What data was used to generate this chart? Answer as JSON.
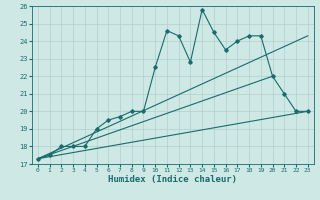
{
  "xlabel": "Humidex (Indice chaleur)",
  "xlim": [
    -0.5,
    23.5
  ],
  "ylim": [
    17,
    26
  ],
  "yticks": [
    17,
    18,
    19,
    20,
    21,
    22,
    23,
    24,
    25,
    26
  ],
  "xticks": [
    0,
    1,
    2,
    3,
    4,
    5,
    6,
    7,
    8,
    9,
    10,
    11,
    12,
    13,
    14,
    15,
    16,
    17,
    18,
    19,
    20,
    21,
    22,
    23
  ],
  "bg_color": "#cde8e5",
  "grid_color": "#b0d0cc",
  "line_color": "#1a6b6b",
  "line1_x": [
    0,
    1,
    2,
    3,
    4,
    5,
    6,
    7,
    8,
    9,
    10,
    11,
    12,
    13,
    14,
    15,
    16,
    17,
    18,
    19,
    20,
    21,
    22,
    23
  ],
  "line1_y": [
    17.3,
    17.5,
    18.0,
    18.0,
    18.0,
    19.0,
    19.5,
    19.7,
    20.0,
    20.0,
    22.5,
    24.6,
    24.3,
    22.8,
    25.8,
    24.5,
    23.5,
    24.0,
    24.3,
    24.3,
    22.0,
    21.0,
    20.0,
    20.0
  ],
  "line2_x": [
    0,
    23
  ],
  "line2_y": [
    17.3,
    24.3
  ],
  "line3_x": [
    0,
    20
  ],
  "line3_y": [
    17.3,
    22.0
  ],
  "line4_x": [
    0,
    23
  ],
  "line4_y": [
    17.3,
    20.0
  ]
}
